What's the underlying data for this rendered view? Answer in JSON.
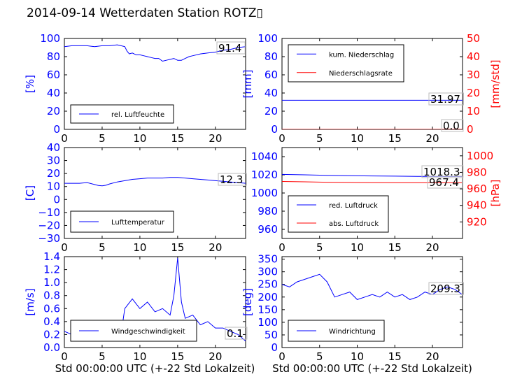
{
  "title": "2014-09-14 Wetterdaten Station ROTZ▯",
  "xlabel": "Std 00:00:00 UTC (+-22 Std Lokalzeit)",
  "colors": {
    "blue": "#0000ff",
    "red": "#ff0000",
    "black": "#000000"
  },
  "chart_data": [
    {
      "type": "line",
      "xlim": [
        0,
        24
      ],
      "xticks": [
        "0",
        "5",
        "10",
        "15",
        "20"
      ],
      "ylim": [
        0,
        100
      ],
      "yticks": [
        "0",
        "20",
        "40",
        "60",
        "80",
        "100"
      ],
      "ylabel": "[%]",
      "legend_position": "lower-left",
      "annotations": [
        "91.4"
      ],
      "series": [
        {
          "name": "rel. Luftfeuchte",
          "color": "#0000ff",
          "x": [
            0,
            1,
            2,
            3,
            4,
            5,
            6,
            7,
            7.5,
            8,
            8.3,
            8.6,
            9,
            9.5,
            10,
            10.5,
            11,
            11.5,
            12,
            12.5,
            13,
            13.5,
            14,
            14.5,
            15,
            15.5,
            16,
            16.5,
            17,
            18,
            19,
            20,
            21,
            22,
            23,
            24
          ],
          "y": [
            91,
            92,
            92,
            92,
            91,
            92,
            92,
            93,
            92,
            91,
            86,
            83,
            84,
            82,
            82,
            81,
            80,
            79,
            78,
            78,
            75,
            76,
            77,
            78,
            76,
            76,
            78,
            80,
            81,
            83,
            84,
            85,
            87,
            88,
            90,
            91
          ]
        }
      ]
    },
    {
      "type": "line",
      "xlim": [
        0,
        24
      ],
      "xticks": [
        "0",
        "5",
        "10",
        "15",
        "20"
      ],
      "ylim": [
        0,
        100
      ],
      "yticks": [
        "0",
        "20",
        "40",
        "60",
        "80",
        "100"
      ],
      "ylabel": "[mm]",
      "y2lim": [
        0,
        50
      ],
      "y2ticks": [
        "0",
        "10",
        "20",
        "30",
        "40",
        "50"
      ],
      "y2label": "[mm/std]",
      "legend_position": "upper-left",
      "annotations": [
        "31.97",
        "0.0"
      ],
      "series": [
        {
          "name": "kum. Niederschlag",
          "color": "#0000ff",
          "axis": "left",
          "x": [
            0,
            24
          ],
          "y": [
            31.97,
            31.97
          ]
        },
        {
          "name": "Niederschlagsrate",
          "color": "#ff0000",
          "axis": "right",
          "x": [
            0,
            24
          ],
          "y": [
            0,
            0
          ]
        }
      ]
    },
    {
      "type": "line",
      "xlim": [
        0,
        24
      ],
      "xticks": [
        "0",
        "5",
        "10",
        "15",
        "20"
      ],
      "ylim": [
        -30,
        40
      ],
      "yticks": [
        "−30",
        "−20",
        "−10",
        "0",
        "10",
        "20",
        "30",
        "40"
      ],
      "ylabel": "[C]",
      "legend_position": "lower-left",
      "annotations": [
        "12.3"
      ],
      "series": [
        {
          "name": "Lufttemperatur",
          "color": "#0000ff",
          "x": [
            0,
            1,
            2,
            3,
            4,
            4.5,
            5,
            5.5,
            6,
            7,
            8,
            9,
            10,
            11,
            12,
            13,
            14,
            15,
            16,
            17,
            18,
            19,
            20,
            21,
            22,
            23,
            24
          ],
          "y": [
            12.5,
            12.5,
            12.5,
            13,
            11.5,
            10.8,
            10.5,
            11,
            12,
            13.5,
            14.5,
            15.5,
            16,
            16.5,
            16.5,
            16.5,
            17,
            17,
            16.5,
            16,
            15.5,
            15,
            14.5,
            14,
            13.5,
            13,
            12.5
          ]
        }
      ]
    },
    {
      "type": "line",
      "xlim": [
        0,
        24
      ],
      "xticks": [
        "0",
        "5",
        "10",
        "15",
        "20"
      ],
      "ylim": [
        950,
        1050
      ],
      "yticks": [
        "960",
        "980",
        "1000",
        "1020",
        "1040"
      ],
      "y2lim": [
        900,
        1010
      ],
      "y2ticks": [
        "920",
        "940",
        "960",
        "980",
        "1000"
      ],
      "y2label": "[hPa]",
      "legend_position": "lower-left",
      "annotations": [
        "1018.3",
        "967.4"
      ],
      "series": [
        {
          "name": "red. Luftdruck",
          "color": "#0000ff",
          "axis": "left",
          "x": [
            0,
            3,
            6,
            9,
            12,
            15,
            18,
            21,
            24
          ],
          "y": [
            1020.5,
            1020,
            1019.5,
            1019,
            1018.8,
            1018.5,
            1018.3,
            1018.3,
            1018.3
          ]
        },
        {
          "name": "abs. Luftdruck",
          "color": "#ff0000",
          "axis": "right",
          "x": [
            0,
            3,
            6,
            9,
            12,
            15,
            18,
            21,
            24
          ],
          "y": [
            969,
            968.5,
            968,
            967.8,
            967.6,
            967.5,
            967.4,
            967.4,
            967.4
          ]
        }
      ]
    },
    {
      "type": "line",
      "xlim": [
        0,
        24
      ],
      "xticks": [
        "0",
        "5",
        "10",
        "15",
        "20"
      ],
      "ylim": [
        0,
        1.4
      ],
      "yticks": [
        "0.0",
        "0.2",
        "0.4",
        "0.6",
        "0.8",
        "1.0",
        "1.2",
        "1.4"
      ],
      "ylabel": "[m/s]",
      "legend_position": "lower-left",
      "annotations": [
        "0.1"
      ],
      "series": [
        {
          "name": "Windgeschwindigkeit",
          "color": "#0000ff",
          "x": [
            0,
            1,
            2,
            3,
            4,
            5,
            6,
            7,
            7.5,
            8,
            9,
            10,
            11,
            12,
            13,
            14,
            14.5,
            15,
            15.5,
            16,
            17,
            18,
            19,
            20,
            21,
            22,
            23,
            24
          ],
          "y": [
            0.25,
            0.2,
            0.3,
            0.15,
            0.25,
            0.3,
            0.2,
            0.3,
            0.2,
            0.6,
            0.75,
            0.6,
            0.7,
            0.55,
            0.6,
            0.5,
            0.8,
            1.38,
            0.7,
            0.45,
            0.5,
            0.35,
            0.4,
            0.3,
            0.3,
            0.25,
            0.2,
            0.1
          ]
        }
      ]
    },
    {
      "type": "line",
      "xlim": [
        0,
        24
      ],
      "xticks": [
        "0",
        "5",
        "10",
        "15",
        "20"
      ],
      "ylim": [
        0,
        360
      ],
      "yticks": [
        "0",
        "50",
        "100",
        "150",
        "200",
        "250",
        "300",
        "350"
      ],
      "ylabel": "[deg]",
      "legend_position": "lower-left",
      "annotations": [
        "209.3"
      ],
      "series": [
        {
          "name": "Windrichtung",
          "color": "#0000ff",
          "x": [
            0,
            1,
            2,
            3,
            4,
            5,
            6,
            7,
            8,
            9,
            10,
            11,
            12,
            13,
            14,
            15,
            16,
            17,
            18,
            19,
            20,
            21,
            22,
            23,
            24
          ],
          "y": [
            250,
            240,
            260,
            270,
            280,
            290,
            260,
            200,
            210,
            220,
            190,
            200,
            210,
            200,
            220,
            200,
            210,
            190,
            200,
            220,
            210,
            230,
            240,
            230,
            209
          ]
        }
      ]
    }
  ]
}
